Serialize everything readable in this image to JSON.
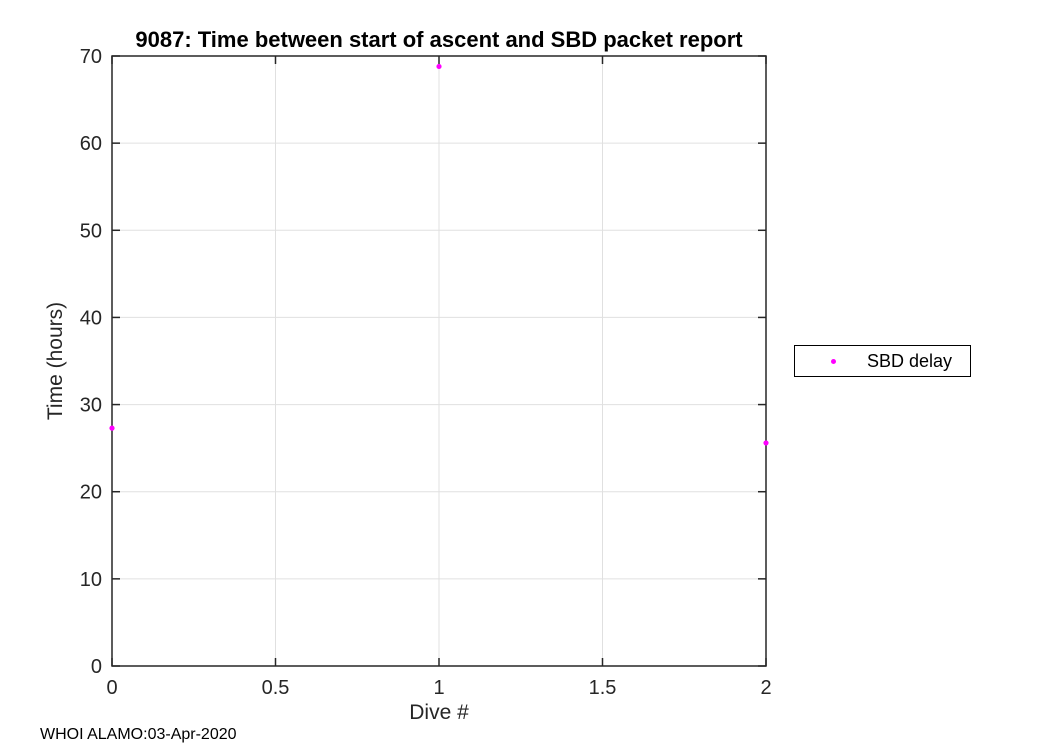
{
  "chart_data": {
    "type": "scatter",
    "title": "9087: Time between start of ascent and SBD packet report",
    "xlabel": "Dive #",
    "ylabel": "Time (hours)",
    "xlim": [
      0,
      2
    ],
    "ylim": [
      0,
      70
    ],
    "xticks": [
      0,
      0.5,
      1,
      1.5,
      2
    ],
    "xtick_labels": [
      "0",
      "0.5",
      "1",
      "1.5",
      "2"
    ],
    "yticks": [
      0,
      10,
      20,
      30,
      40,
      50,
      60,
      70
    ],
    "ytick_labels": [
      "0",
      "10",
      "20",
      "30",
      "40",
      "50",
      "60",
      "70"
    ],
    "grid": true,
    "box": true,
    "legend_position": "outside-right",
    "series": [
      {
        "name": "SBD delay",
        "marker": "dot",
        "color": "#ff00ff",
        "x": [
          0,
          1,
          2
        ],
        "y": [
          27.3,
          68.8,
          25.6
        ]
      }
    ]
  },
  "colors": {
    "axis": "#262626",
    "grid": "#e0e0e0",
    "tick_text": "#262626",
    "title_text": "#000000",
    "background": "#ffffff"
  },
  "footer": {
    "text": "WHOI ALAMO:03-Apr-2020"
  }
}
